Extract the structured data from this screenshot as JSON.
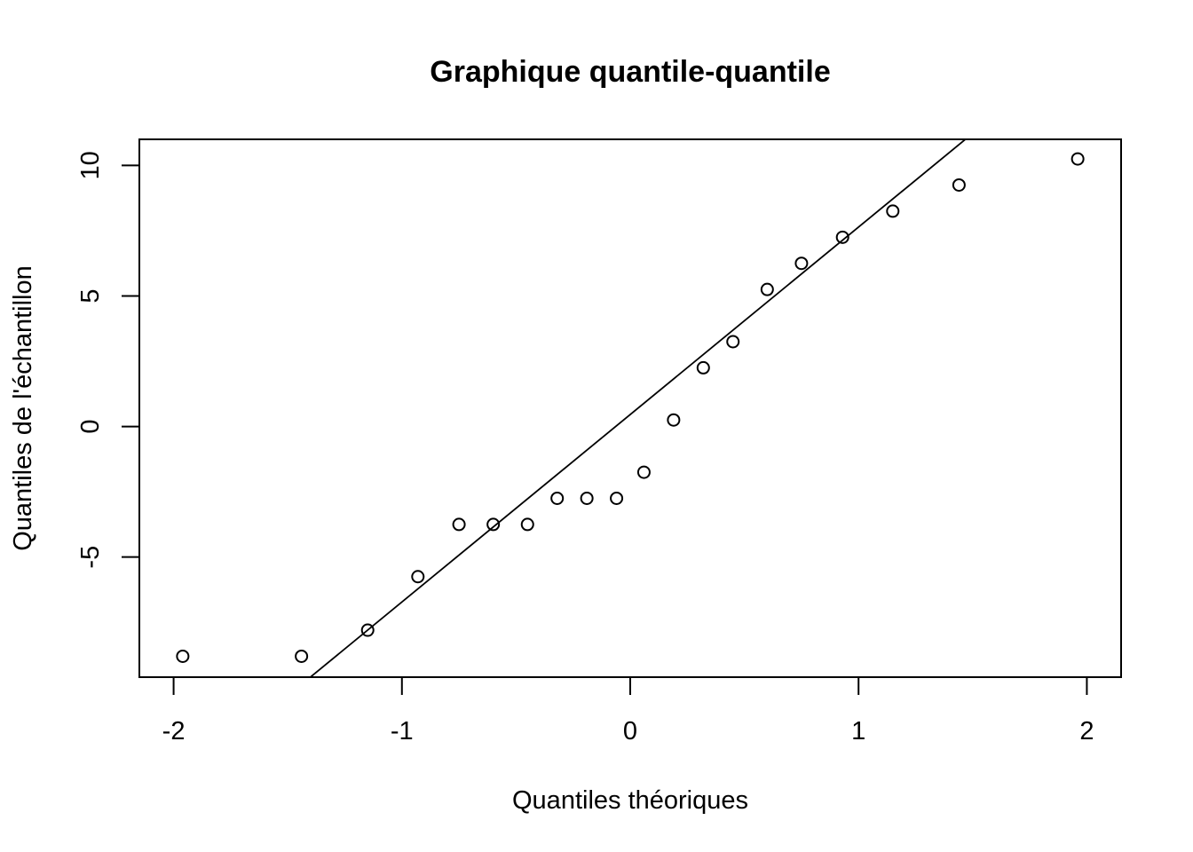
{
  "chart_data": {
    "type": "scatter",
    "title": "Graphique quantile-quantile",
    "xlabel": "Quantiles théoriques",
    "ylabel": "Quantiles de l'échantillon",
    "xlim": [
      -2.15,
      2.15
    ],
    "ylim": [
      -9.6,
      11.0
    ],
    "x_ticks": [
      -2,
      -1,
      0,
      1,
      2
    ],
    "x_tick_labels": [
      "-2",
      "-1",
      "0",
      "1",
      "2"
    ],
    "y_ticks": [
      -5,
      0,
      5,
      10
    ],
    "y_tick_labels": [
      "-5",
      "0",
      "5",
      "10"
    ],
    "grid": false,
    "legend": "none",
    "points": [
      {
        "x": -1.96,
        "y": -8.8
      },
      {
        "x": -1.44,
        "y": -8.8
      },
      {
        "x": -1.15,
        "y": -7.8
      },
      {
        "x": -0.93,
        "y": -5.75
      },
      {
        "x": -0.75,
        "y": -3.75
      },
      {
        "x": -0.6,
        "y": -3.75
      },
      {
        "x": -0.45,
        "y": -3.75
      },
      {
        "x": -0.32,
        "y": -2.75
      },
      {
        "x": -0.19,
        "y": -2.75
      },
      {
        "x": -0.06,
        "y": -2.75
      },
      {
        "x": 0.06,
        "y": -1.75
      },
      {
        "x": 0.19,
        "y": 0.25
      },
      {
        "x": 0.32,
        "y": 2.25
      },
      {
        "x": 0.45,
        "y": 3.25
      },
      {
        "x": 0.6,
        "y": 5.25
      },
      {
        "x": 0.75,
        "y": 6.25
      },
      {
        "x": 0.93,
        "y": 7.25
      },
      {
        "x": 1.15,
        "y": 8.25
      },
      {
        "x": 1.44,
        "y": 9.25
      },
      {
        "x": 1.96,
        "y": 10.25
      }
    ],
    "reference_line": {
      "intercept": 0.46,
      "slope": 7.18
    }
  }
}
